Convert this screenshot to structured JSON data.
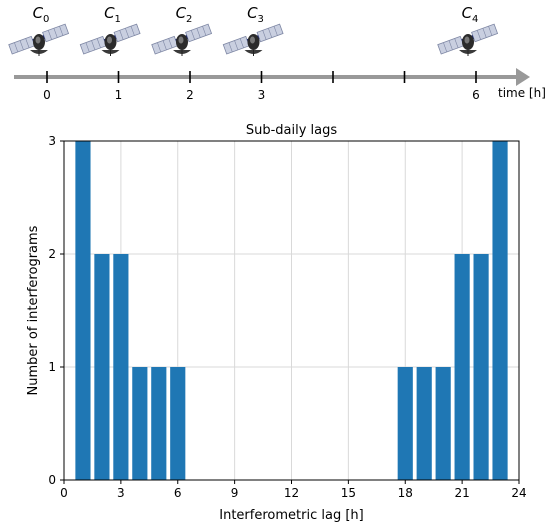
{
  "timeline": {
    "satellites": [
      {
        "label": "C",
        "sub": "0",
        "t": 0
      },
      {
        "label": "C",
        "sub": "1",
        "t": 1
      },
      {
        "label": "C",
        "sub": "2",
        "t": 2
      },
      {
        "label": "C",
        "sub": "3",
        "t": 3
      },
      {
        "label": "C",
        "sub": "4",
        "t": 6
      }
    ],
    "ticks": [
      0,
      1,
      2,
      3,
      4,
      5,
      6
    ],
    "tick_labels": [
      "0",
      "1",
      "2",
      "3",
      "",
      "",
      "6"
    ],
    "axis_label": "time [h]",
    "axis_color": "#999999",
    "satellite_icon": "satellite-icon"
  },
  "chart_data": {
    "type": "bar",
    "title": "Sub-daily lags",
    "xlabel": "Interferometric lag [h]",
    "ylabel": "Number of interferograms",
    "x": [
      1,
      2,
      3,
      4,
      5,
      6,
      18,
      19,
      20,
      21,
      22,
      23
    ],
    "values": [
      3,
      2,
      2,
      1,
      1,
      1,
      1,
      1,
      1,
      2,
      2,
      3
    ],
    "xlim": [
      0,
      24
    ],
    "ylim": [
      0,
      3
    ],
    "xticks": [
      "0",
      "3",
      "6",
      "9",
      "12",
      "15",
      "18",
      "21",
      "24"
    ],
    "yticks": [
      "0",
      "1",
      "2",
      "3"
    ],
    "grid": true,
    "bar_color": "#1f77b4"
  }
}
